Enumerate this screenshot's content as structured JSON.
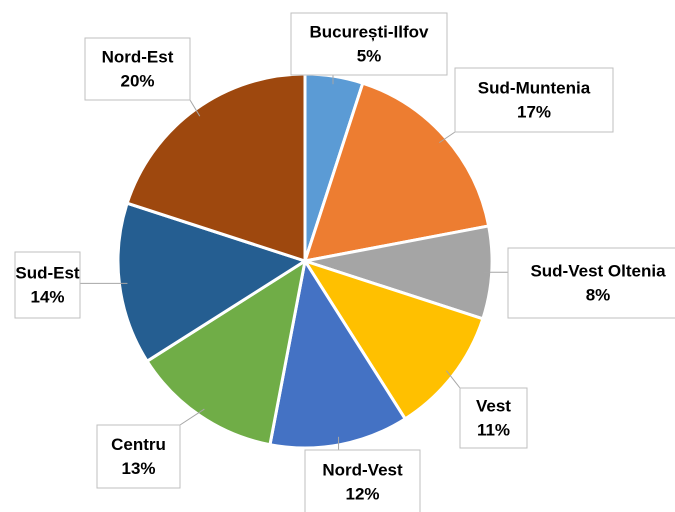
{
  "chart_data": {
    "type": "pie",
    "categories": [
      "București-Ilfov",
      "Sud-Muntenia",
      "Sud-Vest Oltenia",
      "Vest",
      "Nord-Vest",
      "Centru",
      "Sud-Est",
      "Nord-Est"
    ],
    "values": [
      5,
      17,
      8,
      11,
      12,
      13,
      14,
      20
    ],
    "value_labels": [
      "5%",
      "17%",
      "8%",
      "11%",
      "12%",
      "13%",
      "14%",
      "20%"
    ],
    "colors": [
      "#5b9bd5",
      "#ed7d31",
      "#a5a5a5",
      "#ffc000",
      "#4472c4",
      "#70ad47",
      "#255e91",
      "#9e480e"
    ]
  }
}
